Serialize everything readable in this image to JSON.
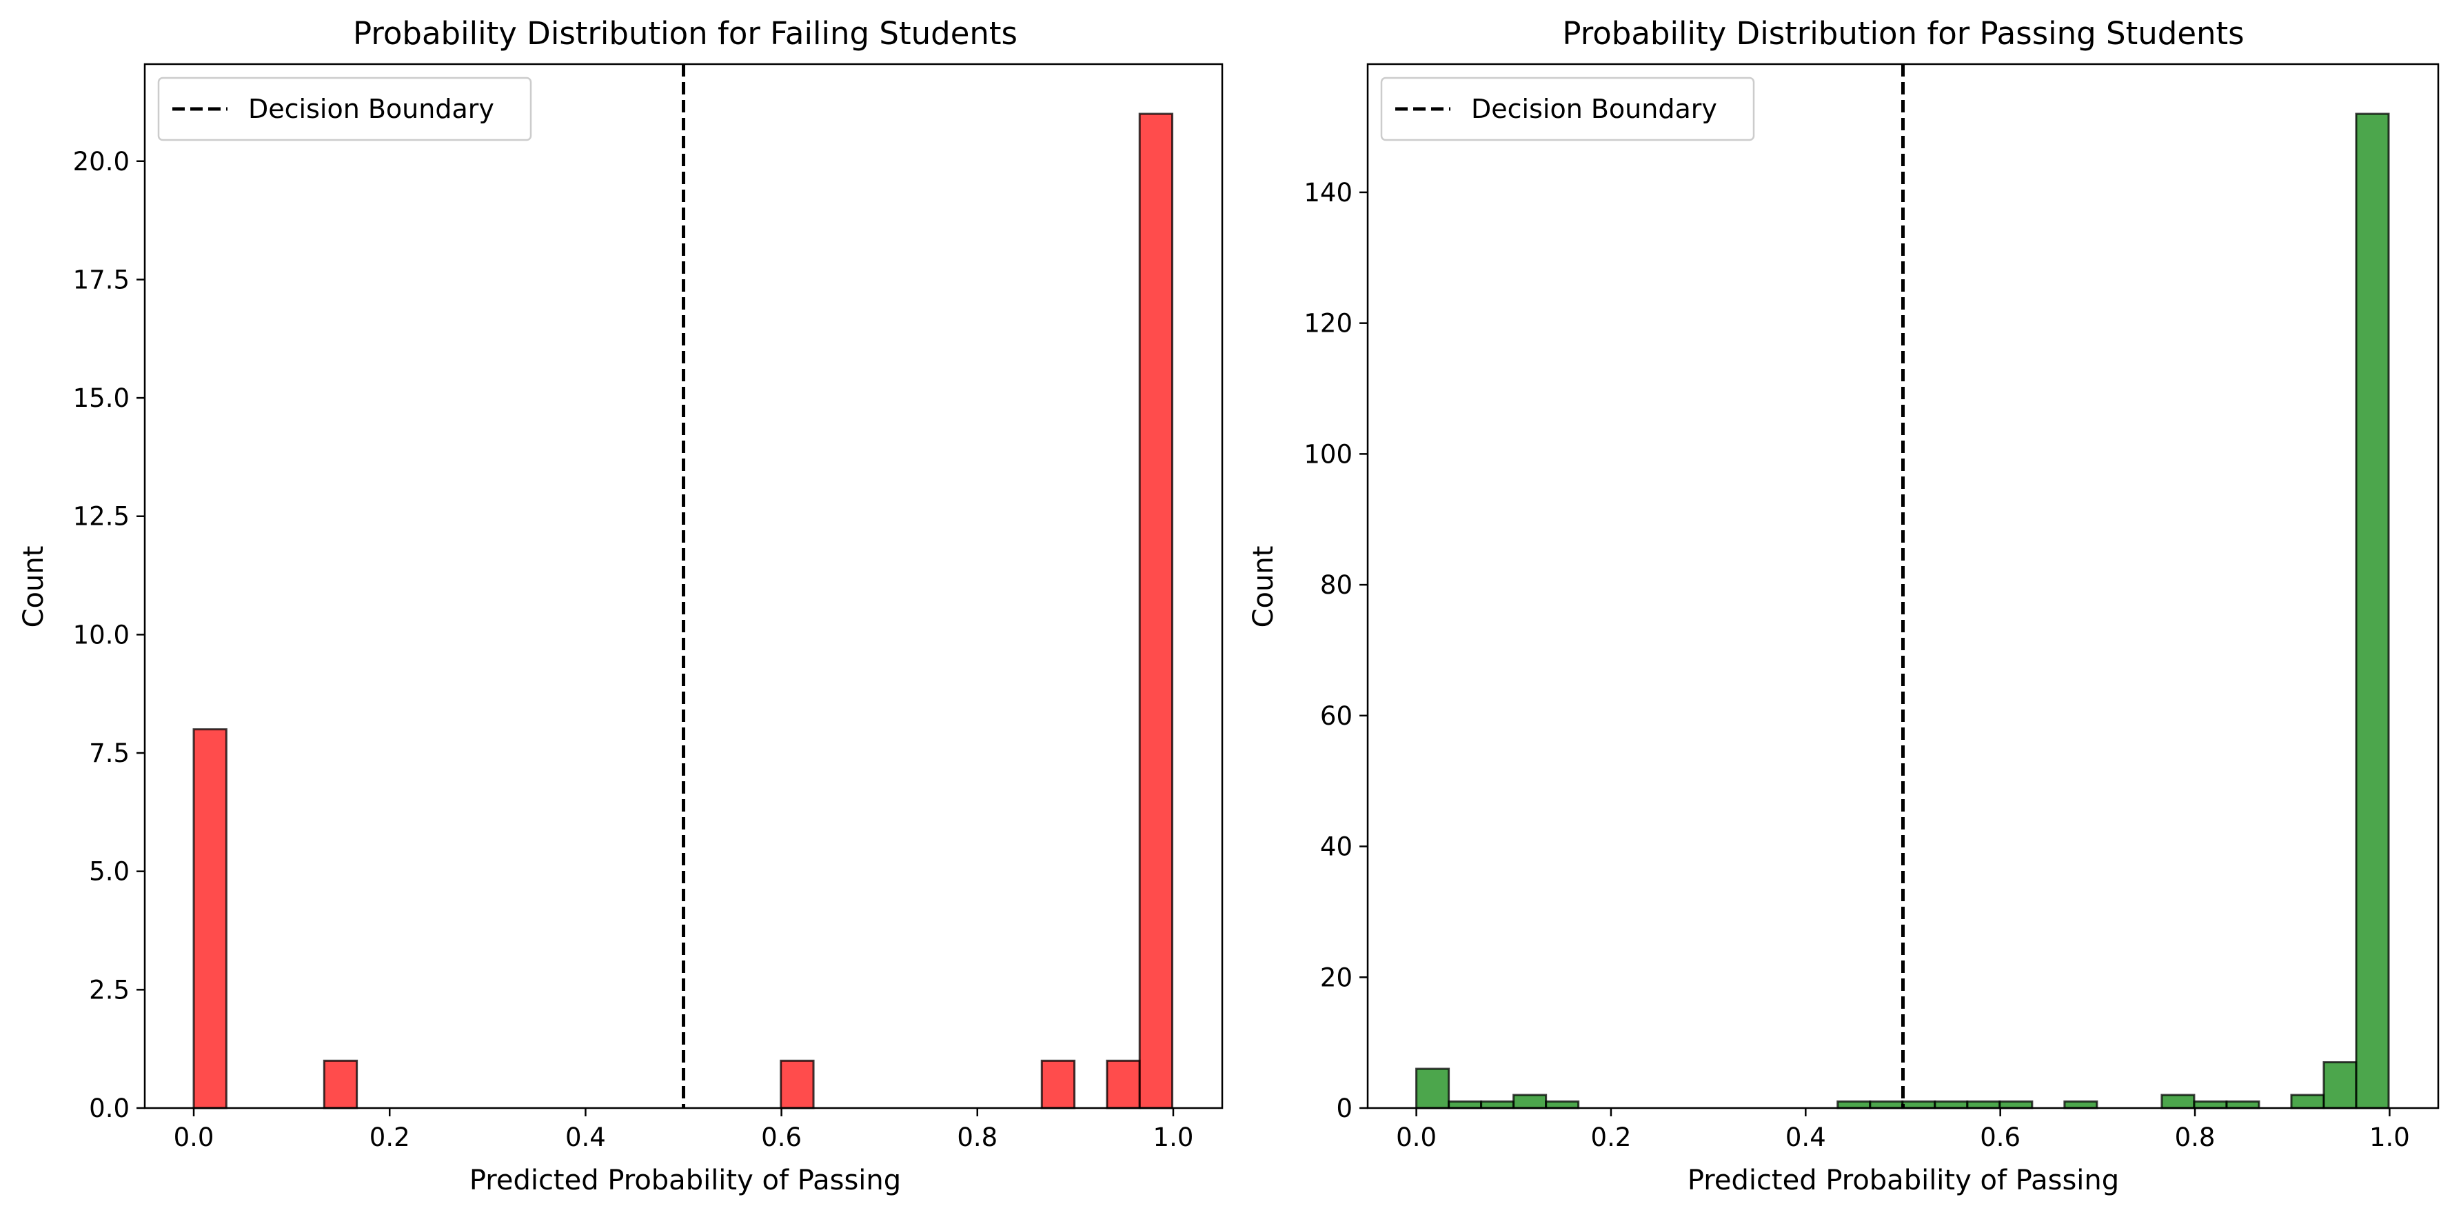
{
  "chart_data": [
    {
      "type": "histogram",
      "title": "Probability Distribution for Failing Students",
      "xlabel": "Predicted Probability of Passing",
      "ylabel": "Count",
      "xlim": [
        -0.05,
        1.05
      ],
      "ylim": [
        0,
        22.05
      ],
      "xticks": [
        0.0,
        0.2,
        0.4,
        0.6,
        0.8,
        1.0
      ],
      "xtick_labels": [
        "0.0",
        "0.2",
        "0.4",
        "0.6",
        "0.8",
        "1.0"
      ],
      "yticks": [
        0,
        2.5,
        5,
        7.5,
        10,
        12.5,
        15,
        17.5,
        20
      ],
      "ytick_labels": [
        "0.0",
        "2.5",
        "5.0",
        "7.5",
        "10.0",
        "12.5",
        "15.0",
        "17.5",
        "20.0"
      ],
      "bins": {
        "start": 0.0,
        "width": 0.0333
      },
      "bin_counts": [
        8,
        0,
        0,
        0,
        1,
        0,
        0,
        0,
        0,
        0,
        0,
        0,
        0,
        0,
        0,
        0,
        0,
        0,
        1,
        0,
        0,
        0,
        0,
        0,
        0,
        0,
        1,
        0,
        1,
        21
      ],
      "color": "#ff0000",
      "decision_boundary": 0.5,
      "legend": {
        "label": "Decision Boundary",
        "location": "upper left"
      },
      "grid": false
    },
    {
      "type": "histogram",
      "title": "Probability Distribution for Passing Students",
      "xlabel": "Predicted Probability of Passing",
      "ylabel": "Count",
      "xlim": [
        -0.05,
        1.05
      ],
      "ylim": [
        0,
        159.6
      ],
      "xticks": [
        0.0,
        0.2,
        0.4,
        0.6,
        0.8,
        1.0
      ],
      "xtick_labels": [
        "0.0",
        "0.2",
        "0.4",
        "0.6",
        "0.8",
        "1.0"
      ],
      "yticks": [
        0,
        20,
        40,
        60,
        80,
        100,
        120,
        140
      ],
      "ytick_labels": [
        "0",
        "20",
        "40",
        "60",
        "80",
        "100",
        "120",
        "140"
      ],
      "bins": {
        "start": 0.0,
        "width": 0.0333
      },
      "bin_counts": [
        6,
        1,
        1,
        2,
        1,
        0,
        0,
        0,
        0,
        0,
        0,
        0,
        0,
        1,
        1,
        1,
        1,
        1,
        1,
        0,
        1,
        0,
        0,
        2,
        1,
        1,
        0,
        2,
        7,
        152
      ],
      "color": "#008000",
      "decision_boundary": 0.5,
      "legend": {
        "label": "Decision Boundary",
        "location": "upper left"
      },
      "grid": false
    }
  ]
}
